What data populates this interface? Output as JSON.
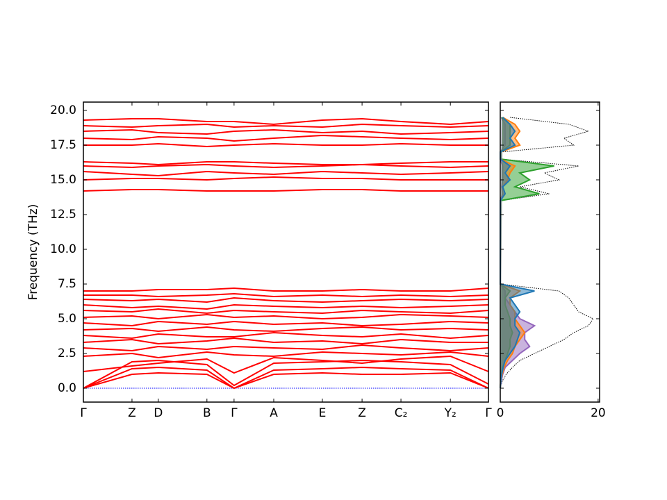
{
  "chart_data": [
    {
      "type": "line",
      "ylabel": "Frequency (THz)",
      "color": "#ff0000",
      "x": [
        0,
        0.12,
        0.185,
        0.305,
        0.372,
        0.47,
        0.59,
        0.688,
        0.784,
        0.906,
        1
      ],
      "xlim": [
        0,
        1
      ],
      "xticks": [
        {
          "value": 0,
          "label": "Γ"
        },
        {
          "value": 0.12,
          "label": "Z"
        },
        {
          "value": 0.185,
          "label": "D"
        },
        {
          "value": 0.305,
          "label": "B"
        },
        {
          "value": 0.372,
          "label": "Γ"
        },
        {
          "value": 0.47,
          "label": "A"
        },
        {
          "value": 0.59,
          "label": "E"
        },
        {
          "value": 0.688,
          "label": "Z"
        },
        {
          "value": 0.784,
          "label": "C₂"
        },
        {
          "value": 0.906,
          "label": "Y₂"
        },
        {
          "value": 1,
          "label": "Γ"
        }
      ],
      "ylim": [
        -1,
        20.6
      ],
      "yticks": [
        {
          "value": 0,
          "label": "0.0"
        },
        2.5,
        {
          "value": 5,
          "label": "5.0"
        },
        7.5,
        {
          "value": 10,
          "label": "10.0"
        },
        12.5,
        {
          "value": 15,
          "label": "15.0"
        },
        17.5,
        {
          "value": 20,
          "label": "20.0"
        }
      ],
      "hline": {
        "value": 0,
        "color": "#0000ff"
      },
      "series": [
        {
          "values": [
            0,
            1.0,
            1.1,
            1.0,
            0,
            1.0,
            1.1,
            1.0,
            1.0,
            1.1,
            0
          ]
        },
        {
          "values": [
            0,
            1.4,
            1.5,
            1.3,
            0,
            1.3,
            1.4,
            1.5,
            1.4,
            1.3,
            0
          ]
        },
        {
          "values": [
            0,
            1.9,
            2.0,
            1.7,
            0.2,
            1.8,
            1.9,
            2.0,
            1.9,
            1.7,
            0.3
          ]
        },
        {
          "values": [
            1.2,
            1.6,
            1.8,
            2.1,
            1.1,
            2.2,
            2.0,
            1.8,
            2.1,
            2.3,
            1.2
          ]
        },
        {
          "values": [
            2.3,
            2.5,
            2.2,
            2.6,
            2.4,
            2.3,
            2.6,
            2.5,
            2.4,
            2.6,
            2.3
          ]
        },
        {
          "values": [
            2.9,
            2.7,
            3.0,
            2.8,
            3.0,
            2.9,
            2.8,
            3.1,
            2.9,
            2.7,
            2.9
          ]
        },
        {
          "values": [
            3.3,
            3.5,
            3.2,
            3.4,
            3.6,
            3.3,
            3.4,
            3.2,
            3.5,
            3.3,
            3.3
          ]
        },
        {
          "values": [
            3.8,
            3.6,
            3.9,
            3.7,
            3.7,
            4.0,
            3.8,
            3.7,
            3.9,
            3.6,
            3.8
          ]
        },
        {
          "values": [
            4.2,
            4.3,
            4.1,
            4.4,
            4.2,
            4.1,
            4.3,
            4.4,
            4.2,
            4.3,
            4.2
          ]
        },
        {
          "values": [
            4.7,
            4.5,
            4.8,
            4.6,
            4.8,
            4.6,
            4.7,
            4.5,
            4.6,
            4.8,
            4.7
          ]
        },
        {
          "values": [
            5.1,
            5.2,
            5.0,
            5.3,
            5.1,
            5.2,
            5.0,
            5.1,
            5.3,
            5.2,
            5.1
          ]
        },
        {
          "values": [
            5.6,
            5.5,
            5.7,
            5.4,
            5.6,
            5.5,
            5.4,
            5.6,
            5.5,
            5.4,
            5.6
          ]
        },
        {
          "values": [
            6.0,
            5.8,
            5.9,
            5.7,
            6.0,
            5.9,
            5.8,
            5.9,
            5.8,
            5.9,
            6.0
          ]
        },
        {
          "values": [
            6.4,
            6.3,
            6.4,
            6.2,
            6.5,
            6.3,
            6.2,
            6.3,
            6.4,
            6.3,
            6.4
          ]
        },
        {
          "values": [
            6.7,
            6.7,
            6.6,
            6.7,
            6.8,
            6.6,
            6.7,
            6.6,
            6.7,
            6.6,
            6.7
          ]
        },
        {
          "values": [
            7.0,
            7.0,
            7.1,
            7.1,
            7.2,
            7.0,
            7.0,
            7.1,
            7.0,
            7.0,
            7.2
          ]
        },
        {
          "values": [
            14.2,
            14.3,
            14.3,
            14.2,
            14.2,
            14.2,
            14.3,
            14.3,
            14.2,
            14.2,
            14.2
          ]
        },
        {
          "values": [
            15.0,
            15.1,
            15.1,
            15.0,
            15.1,
            15.2,
            15.1,
            15.1,
            15.0,
            15.0,
            15.0
          ]
        },
        {
          "values": [
            15.6,
            15.4,
            15.3,
            15.6,
            15.5,
            15.4,
            15.6,
            15.5,
            15.4,
            15.5,
            15.6
          ]
        },
        {
          "values": [
            16.0,
            15.9,
            16.0,
            16.1,
            16.0,
            15.9,
            16.0,
            16.1,
            16.0,
            15.9,
            16.0
          ]
        },
        {
          "values": [
            16.3,
            16.2,
            16.1,
            16.3,
            16.3,
            16.2,
            16.1,
            16.1,
            16.2,
            16.3,
            16.3
          ]
        },
        {
          "values": [
            17.5,
            17.5,
            17.6,
            17.4,
            17.5,
            17.6,
            17.5,
            17.5,
            17.6,
            17.5,
            17.5
          ]
        },
        {
          "values": [
            18.0,
            17.9,
            18.1,
            18.0,
            17.8,
            18.0,
            18.2,
            18.1,
            18.0,
            17.9,
            18.0
          ]
        },
        {
          "values": [
            18.5,
            18.6,
            18.4,
            18.3,
            18.5,
            18.6,
            18.4,
            18.5,
            18.3,
            18.4,
            18.5
          ]
        },
        {
          "values": [
            18.9,
            18.8,
            18.9,
            19.0,
            18.8,
            18.9,
            18.8,
            19.0,
            18.9,
            18.8,
            18.9
          ]
        },
        {
          "values": [
            19.3,
            19.4,
            19.4,
            19.2,
            19.2,
            19.0,
            19.3,
            19.4,
            19.2,
            19.0,
            19.2
          ]
        }
      ]
    },
    {
      "type": "dos",
      "y": [
        0,
        0.5,
        1,
        1.5,
        2,
        2.5,
        3,
        3.5,
        4,
        4.5,
        5,
        5.5,
        6,
        6.5,
        7,
        7.5,
        8,
        8.5,
        9,
        9.5,
        10,
        10.5,
        11,
        11.5,
        12,
        12.5,
        13,
        13.5,
        14,
        14.5,
        15,
        15.5,
        16,
        16.5,
        17,
        17.5,
        18,
        18.5,
        19,
        19.5
      ],
      "xlim": [
        0,
        20.3
      ],
      "xticks": [
        0,
        20
      ],
      "ylim": [
        -1,
        20.6
      ],
      "yticks": [
        0,
        2.5,
        5,
        7.5,
        10,
        12.5,
        15,
        17.5,
        20
      ],
      "series": [
        {
          "color": "#000000",
          "dotted": true,
          "values": [
            0,
            0.4,
            1.2,
            2.5,
            4,
            7,
            10,
            13,
            15,
            18,
            19,
            16,
            15,
            14,
            12,
            0,
            0,
            0,
            0,
            0,
            0,
            0,
            0,
            0,
            0,
            0,
            0,
            0,
            10,
            4,
            12,
            9,
            16,
            0,
            0,
            15,
            13,
            18,
            14,
            2
          ]
        },
        {
          "color": "#9467bd",
          "values": [
            0,
            0.2,
            0.5,
            1,
            2.5,
            4,
            6,
            5,
            5,
            7,
            4,
            3,
            2,
            1,
            1,
            0,
            0,
            0,
            0,
            0,
            0,
            0,
            0,
            0,
            0,
            0,
            0,
            0,
            0.5,
            0.3,
            0.5,
            0.5,
            0.5,
            0,
            0,
            1,
            1,
            1,
            1,
            0.2
          ]
        },
        {
          "color": "#2ca02c",
          "values": [
            0,
            0.1,
            0.2,
            0.5,
            1,
            1.5,
            2,
            2,
            2.5,
            2,
            2,
            1.5,
            1,
            1,
            2,
            0,
            0,
            0,
            0,
            0,
            0,
            0,
            0,
            0,
            0,
            0,
            0,
            0,
            8,
            3,
            6,
            4,
            11,
            0,
            0,
            2,
            2,
            2,
            2,
            0.3
          ]
        },
        {
          "color": "#ff7f0e",
          "values": [
            0,
            0.1,
            0.4,
            0.8,
            1.5,
            2.5,
            3,
            4,
            5,
            4,
            3,
            3,
            2,
            2,
            4,
            0,
            0,
            0,
            0,
            0,
            0,
            0,
            0,
            0,
            0,
            0,
            0,
            0,
            1,
            0.5,
            1.5,
            2,
            3,
            0,
            0,
            4,
            3,
            4,
            3,
            0.5
          ]
        },
        {
          "color": "#1f77b4",
          "values": [
            0,
            0.1,
            0.3,
            0.6,
            1,
            2,
            3,
            3.5,
            4,
            3,
            3,
            4,
            3,
            2,
            7,
            0,
            0,
            0,
            0,
            0,
            0,
            0,
            0,
            0,
            0,
            0,
            0,
            0,
            1,
            0.5,
            2,
            1,
            2,
            0,
            0,
            3,
            2,
            3,
            2,
            0.5
          ]
        }
      ]
    }
  ]
}
